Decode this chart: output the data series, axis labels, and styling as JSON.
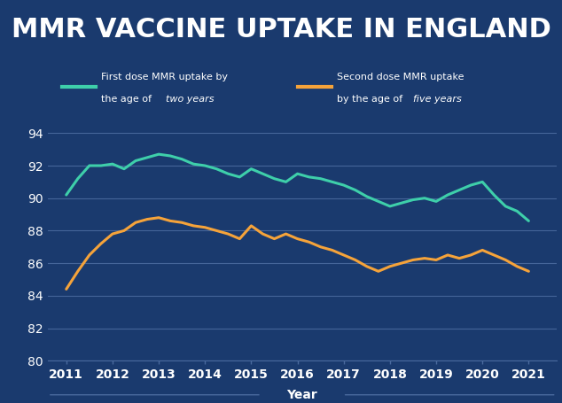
{
  "title": "MMR VACCINE UPTAKE IN ENGLAND",
  "title_color": "#ffffff",
  "title_bg_color": "#0a0a0a",
  "plot_bg_color": "#1a3a6e",
  "fig_bg_color": "#1a3a6e",
  "xlabel": "Year",
  "tick_color": "#ffffff",
  "grid_color": "#4a6a9e",
  "ylim": [
    80,
    95
  ],
  "yticks": [
    80,
    82,
    84,
    86,
    88,
    90,
    92,
    94
  ],
  "line1_label1": "First dose MMR uptake by",
  "line1_label2": "the age of ",
  "line1_italic": "two years",
  "line2_label1": "Second dose MMR uptake",
  "line2_label2": "by the age of ",
  "line2_italic": "five years",
  "line1_color": "#3ecfaa",
  "line2_color": "#f5a33a",
  "line_width": 2.2,
  "years": [
    2011,
    2011.25,
    2011.5,
    2011.75,
    2012,
    2012.25,
    2012.5,
    2012.75,
    2013,
    2013.25,
    2013.5,
    2013.75,
    2014,
    2014.25,
    2014.5,
    2014.75,
    2015,
    2015.25,
    2015.5,
    2015.75,
    2016,
    2016.25,
    2016.5,
    2016.75,
    2017,
    2017.25,
    2017.5,
    2017.75,
    2018,
    2018.25,
    2018.5,
    2018.75,
    2019,
    2019.25,
    2019.5,
    2019.75,
    2020,
    2020.25,
    2020.5,
    2020.75,
    2021
  ],
  "dose1": [
    90.2,
    91.2,
    92.0,
    92.0,
    92.1,
    91.8,
    92.3,
    92.5,
    92.7,
    92.6,
    92.4,
    92.1,
    92.0,
    91.8,
    91.5,
    91.3,
    91.8,
    91.5,
    91.2,
    91.0,
    91.5,
    91.3,
    91.2,
    91.0,
    90.8,
    90.5,
    90.1,
    89.8,
    89.5,
    89.7,
    89.9,
    90.0,
    89.8,
    90.2,
    90.5,
    90.8,
    91.0,
    90.2,
    89.5,
    89.2,
    88.6
  ],
  "dose2": [
    84.4,
    85.5,
    86.5,
    87.2,
    87.8,
    88.0,
    88.5,
    88.7,
    88.8,
    88.6,
    88.5,
    88.3,
    88.2,
    88.0,
    87.8,
    87.5,
    88.3,
    87.8,
    87.5,
    87.8,
    87.5,
    87.3,
    87.0,
    86.8,
    86.5,
    86.2,
    85.8,
    85.5,
    85.8,
    86.0,
    86.2,
    86.3,
    86.2,
    86.5,
    86.3,
    86.5,
    86.8,
    86.5,
    86.2,
    85.8,
    85.5
  ],
  "title_fontsize": 22,
  "tick_fontsize": 10,
  "xlabel_fontsize": 10
}
